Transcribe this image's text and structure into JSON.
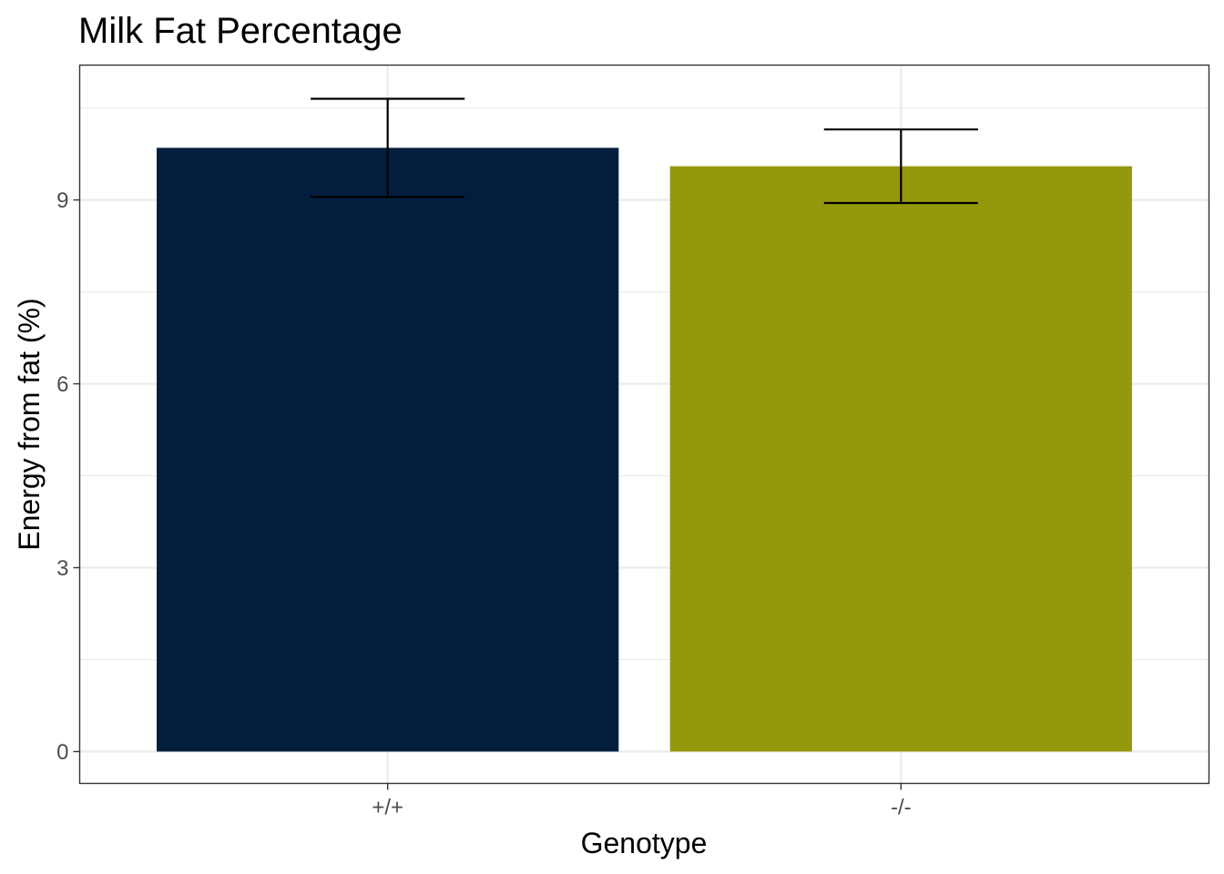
{
  "chart_data": {
    "type": "bar",
    "title": "Milk Fat Percentage",
    "xlabel": "Genotype",
    "ylabel": "Energy from fat (%)",
    "categories": [
      "+/+",
      "-/-"
    ],
    "values": [
      9.85,
      9.55
    ],
    "error_low": [
      9.05,
      8.95
    ],
    "error_high": [
      10.65,
      10.15
    ],
    "bar_colors": [
      "#021E3C",
      "#94980B"
    ],
    "ylim": [
      -0.52,
      11.2
    ],
    "yticks": [
      0,
      3,
      6,
      9
    ],
    "ytick_labels": [
      "0",
      "3",
      "6",
      "9"
    ],
    "grid": true,
    "legend": "none"
  }
}
